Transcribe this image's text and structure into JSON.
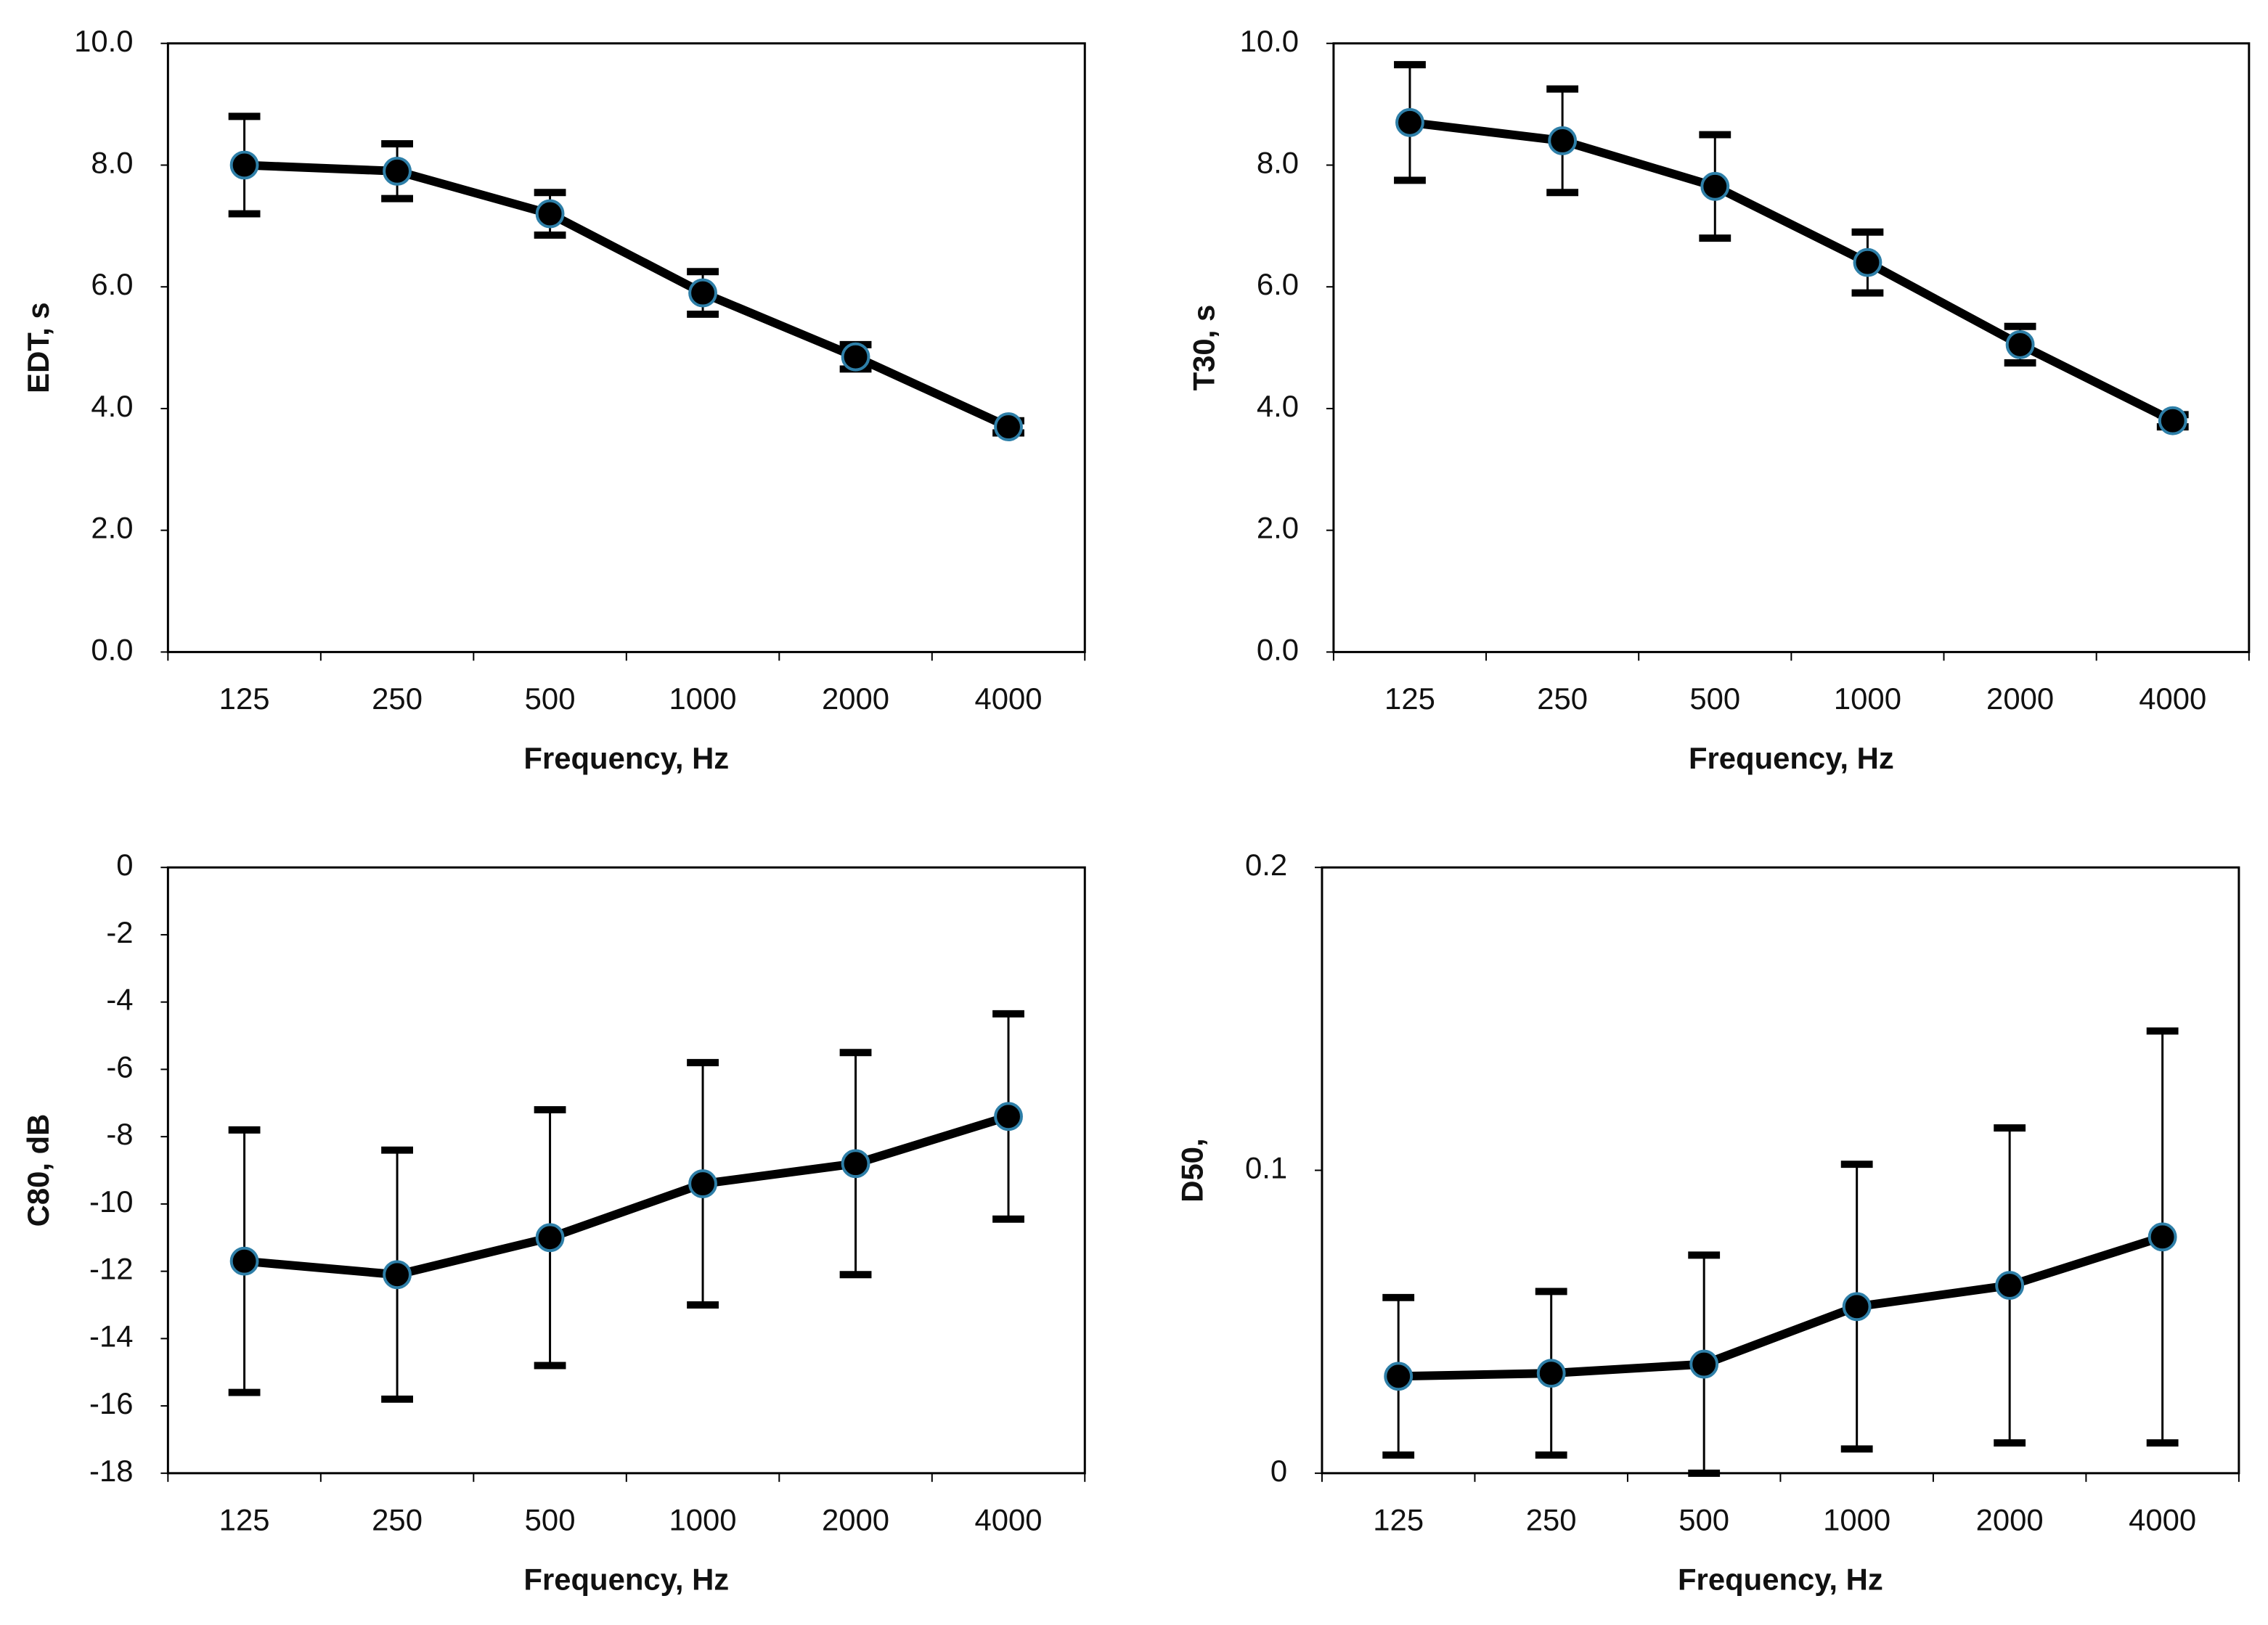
{
  "chart_data": [
    {
      "type": "line",
      "xlabel": "Frequency, Hz",
      "ylabel": "EDT, s",
      "categories": [
        "125",
        "250",
        "500",
        "1000",
        "2000",
        "4000"
      ],
      "values": [
        8.0,
        7.9,
        7.2,
        5.9,
        4.85,
        3.7
      ],
      "errors": [
        0.8,
        0.45,
        0.35,
        0.35,
        0.2,
        0.1
      ],
      "color": "#000000",
      "marker_edge": "#2e7fa8",
      "ylim": [
        0,
        10
      ],
      "yticks": [
        {
          "value": 0,
          "label": "0.0"
        },
        {
          "value": 2,
          "label": "2.0"
        },
        {
          "value": 4,
          "label": "4.0"
        },
        {
          "value": 6,
          "label": "6.0"
        },
        {
          "value": 8,
          "label": "8.0"
        },
        {
          "value": 10,
          "label": "10.0"
        }
      ]
    },
    {
      "type": "line",
      "xlabel": "Frequency, Hz",
      "ylabel": "T30, s",
      "categories": [
        "125",
        "250",
        "500",
        "1000",
        "2000",
        "4000"
      ],
      "values": [
        8.7,
        8.4,
        7.65,
        6.4,
        5.05,
        3.8
      ],
      "errors": [
        0.95,
        0.85,
        0.85,
        0.5,
        0.3,
        0.1
      ],
      "color": "#000000",
      "marker_edge": "#2e7fa8",
      "ylim": [
        0,
        10
      ],
      "yticks": [
        {
          "value": 0,
          "label": "0.0"
        },
        {
          "value": 2,
          "label": "2.0"
        },
        {
          "value": 4,
          "label": "4.0"
        },
        {
          "value": 6,
          "label": "6.0"
        },
        {
          "value": 8,
          "label": "8.0"
        },
        {
          "value": 10,
          "label": "10.0"
        }
      ]
    },
    {
      "type": "line",
      "xlabel": "Frequency, Hz",
      "ylabel": "C80, dB",
      "categories": [
        "125",
        "250",
        "500",
        "1000",
        "2000",
        "4000"
      ],
      "values": [
        -11.7,
        -12.1,
        -11.0,
        -9.4,
        -8.8,
        -7.4
      ],
      "errors": [
        3.9,
        3.7,
        3.8,
        3.6,
        3.3,
        3.05
      ],
      "color": "#000000",
      "marker_edge": "#2e7fa8",
      "ylim": [
        -18,
        0
      ],
      "yticks": [
        -18,
        -16,
        -14,
        -12,
        -10,
        -8,
        -6,
        -4,
        -2,
        0
      ]
    },
    {
      "type": "line",
      "xlabel": "Frequency, Hz",
      "ylabel": "D50,",
      "categories": [
        "125",
        "250",
        "500",
        "1000",
        "2000",
        "4000"
      ],
      "values": [
        0.032,
        0.033,
        0.036,
        0.055,
        0.062,
        0.078
      ],
      "errors": [
        0.026,
        0.027,
        0.036,
        0.047,
        0.052,
        0.068
      ],
      "color": "#000000",
      "marker_edge": "#2e7fa8",
      "ylim": [
        0,
        0.2
      ],
      "yticks": [
        0,
        0.1,
        0.2
      ]
    }
  ]
}
